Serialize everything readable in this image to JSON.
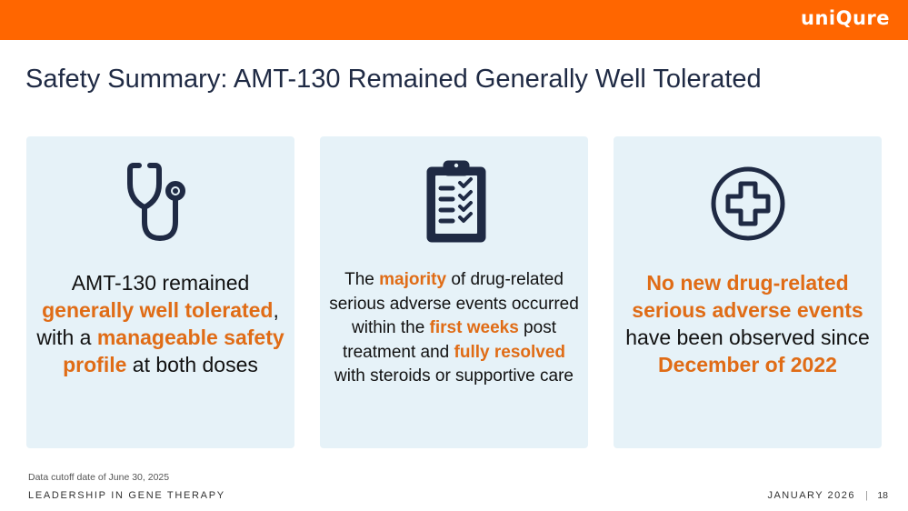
{
  "brand": {
    "logo_text": "uniQure",
    "accent_color": "#ff6600",
    "highlight_color": "#e06c16",
    "card_background": "#e6f2f8",
    "icon_color": "#1f2a44"
  },
  "slide": {
    "title": "Safety Summary: AMT-130 Remained Generally Well Tolerated"
  },
  "cards": [
    {
      "icon": "stethoscope-icon",
      "text": {
        "p1": "AMT-130 remained ",
        "h1": "generally well tolerated",
        "p2": ", with a ",
        "h2": "manageable safety profile",
        "p3": " at both doses"
      }
    },
    {
      "icon": "clipboard-checklist-icon",
      "text": {
        "p1": "The ",
        "h1": "majority",
        "p2": " of drug-related serious adverse events occurred within the ",
        "h2": "first weeks",
        "p3": " post treatment and ",
        "h3": "fully resolved",
        "p4": " with steroids or supportive care"
      }
    },
    {
      "icon": "medical-cross-icon",
      "text": {
        "h1": "No new drug-related serious adverse events",
        "p1": " have been observed since ",
        "h2": "December of 2022"
      }
    }
  ],
  "footer": {
    "footnote": "Data cutoff date of June 30, 2025",
    "tagline": "LEADERSHIP IN GENE THERAPY",
    "date": "JANUARY 2026",
    "separator": "|",
    "page_number": "18"
  }
}
